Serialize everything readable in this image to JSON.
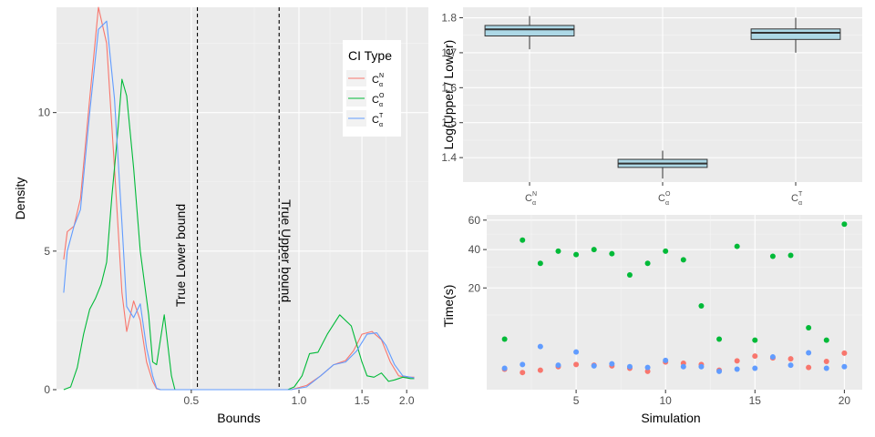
{
  "chart_data": [
    {
      "type": "line",
      "subtype": "density",
      "title": "",
      "xlabel": "Bounds",
      "ylabel": "Density",
      "x_scale": "log",
      "xlim": [
        0.21,
        2.3
      ],
      "ylim": [
        0,
        13.8
      ],
      "x_ticks": [
        0.5,
        1.0,
        1.5,
        2.0
      ],
      "x_tick_labels": [
        "0.5",
        "1.0",
        "1.5",
        "2.0"
      ],
      "y_ticks": [
        0,
        5,
        10
      ],
      "y_tick_labels": [
        "0",
        "5",
        "10"
      ],
      "grid": true,
      "legend": {
        "title": "CI Type",
        "position": "top-right",
        "entries": [
          {
            "base": "C",
            "sup": "N",
            "sub": "α",
            "color": "#F8766D"
          },
          {
            "base": "C",
            "sup": "O",
            "sub": "α",
            "color": "#00BA38"
          },
          {
            "base": "C",
            "sup": "T",
            "sub": "α",
            "color": "#619CFF"
          }
        ]
      },
      "annotations": [
        {
          "text": "True Lower bound",
          "x": 0.52,
          "style": "dashed"
        },
        {
          "text": "True Upper bound",
          "x": 0.88,
          "style": "dashed"
        }
      ],
      "series": [
        {
          "name": "C_alpha^N",
          "color": "#F8766D",
          "points": [
            [
              0.22,
              4.7
            ],
            [
              0.225,
              5.7
            ],
            [
              0.235,
              5.9
            ],
            [
              0.245,
              6.9
            ],
            [
              0.26,
              10.5
            ],
            [
              0.275,
              13.8
            ],
            [
              0.29,
              12.5
            ],
            [
              0.305,
              8.0
            ],
            [
              0.32,
              3.5
            ],
            [
              0.33,
              2.1
            ],
            [
              0.345,
              3.2
            ],
            [
              0.36,
              2.5
            ],
            [
              0.375,
              1.0
            ],
            [
              0.39,
              0.3
            ],
            [
              0.4,
              0.03
            ],
            [
              0.41,
              0
            ],
            [
              0.95,
              0
            ],
            [
              1.05,
              0.15
            ],
            [
              1.15,
              0.5
            ],
            [
              1.25,
              0.9
            ],
            [
              1.35,
              1.05
            ],
            [
              1.42,
              1.4
            ],
            [
              1.5,
              2.0
            ],
            [
              1.6,
              2.1
            ],
            [
              1.7,
              1.8
            ],
            [
              1.8,
              1.0
            ],
            [
              1.9,
              0.5
            ],
            [
              2.0,
              0.45
            ],
            [
              2.1,
              0.45
            ]
          ]
        },
        {
          "name": "C_alpha^O",
          "color": "#00BA38",
          "points": [
            [
              0.22,
              0
            ],
            [
              0.23,
              0.1
            ],
            [
              0.24,
              0.8
            ],
            [
              0.25,
              2.0
            ],
            [
              0.26,
              2.9
            ],
            [
              0.27,
              3.3
            ],
            [
              0.28,
              3.8
            ],
            [
              0.29,
              4.6
            ],
            [
              0.3,
              7.0
            ],
            [
              0.31,
              9.0
            ],
            [
              0.32,
              11.2
            ],
            [
              0.33,
              10.6
            ],
            [
              0.345,
              8.0
            ],
            [
              0.36,
              5.0
            ],
            [
              0.38,
              2.7
            ],
            [
              0.39,
              1.0
            ],
            [
              0.4,
              0.9
            ],
            [
              0.42,
              2.7
            ],
            [
              0.44,
              0.5
            ],
            [
              0.45,
              0
            ],
            [
              0.93,
              0
            ],
            [
              0.97,
              0.1
            ],
            [
              1.02,
              0.5
            ],
            [
              1.07,
              1.3
            ],
            [
              1.13,
              1.35
            ],
            [
              1.2,
              2.0
            ],
            [
              1.3,
              2.7
            ],
            [
              1.4,
              2.3
            ],
            [
              1.5,
              1.0
            ],
            [
              1.55,
              0.5
            ],
            [
              1.62,
              0.45
            ],
            [
              1.7,
              0.6
            ],
            [
              1.78,
              0.3
            ],
            [
              1.85,
              0.35
            ],
            [
              1.95,
              0.45
            ],
            [
              2.05,
              0.4
            ],
            [
              2.1,
              0.4
            ]
          ]
        },
        {
          "name": "C_alpha^T",
          "color": "#619CFF",
          "points": [
            [
              0.22,
              3.5
            ],
            [
              0.225,
              5.0
            ],
            [
              0.235,
              5.9
            ],
            [
              0.245,
              6.5
            ],
            [
              0.26,
              10.0
            ],
            [
              0.275,
              13.0
            ],
            [
              0.29,
              13.3
            ],
            [
              0.305,
              10.5
            ],
            [
              0.32,
              6.0
            ],
            [
              0.33,
              3.0
            ],
            [
              0.345,
              2.6
            ],
            [
              0.36,
              3.1
            ],
            [
              0.375,
              1.5
            ],
            [
              0.39,
              0.5
            ],
            [
              0.4,
              0.05
            ],
            [
              0.41,
              0
            ],
            [
              0.95,
              0
            ],
            [
              1.05,
              0.1
            ],
            [
              1.15,
              0.5
            ],
            [
              1.25,
              0.9
            ],
            [
              1.35,
              1.0
            ],
            [
              1.45,
              1.4
            ],
            [
              1.55,
              2.0
            ],
            [
              1.65,
              2.05
            ],
            [
              1.75,
              1.6
            ],
            [
              1.85,
              0.9
            ],
            [
              1.95,
              0.5
            ],
            [
              2.05,
              0.45
            ],
            [
              2.1,
              0.42
            ]
          ]
        }
      ]
    },
    {
      "type": "box",
      "title": "",
      "xlabel": "",
      "ylabel": "Log(Upper / Lower)",
      "ylim": [
        1.33,
        1.83
      ],
      "y_ticks": [
        1.4,
        1.5,
        1.6,
        1.7,
        1.8
      ],
      "y_tick_labels": [
        "1.4",
        "1.5",
        "1.6",
        "1.7",
        "1.8"
      ],
      "grid": true,
      "fill_color": "#ADD8E6",
      "categories": [
        {
          "base": "C",
          "sup": "N",
          "sub": "α"
        },
        {
          "base": "C",
          "sup": "O",
          "sub": "α"
        },
        {
          "base": "C",
          "sup": "T",
          "sub": "α"
        }
      ],
      "boxes": [
        {
          "min": 1.71,
          "q1": 1.748,
          "median": 1.767,
          "q3": 1.778,
          "max": 1.805
        },
        {
          "min": 1.34,
          "q1": 1.372,
          "median": 1.383,
          "q3": 1.395,
          "max": 1.42
        },
        {
          "min": 1.7,
          "q1": 1.738,
          "median": 1.757,
          "q3": 1.768,
          "max": 1.8
        }
      ]
    },
    {
      "type": "scatter",
      "title": "",
      "xlabel": "Simulation",
      "ylabel": "Time(s)",
      "y_scale": "sqrt",
      "xlim": [
        0,
        21
      ],
      "ylim": [
        0,
        64
      ],
      "x_ticks": [
        5,
        10,
        15,
        20
      ],
      "x_tick_labels": [
        "5",
        "10",
        "15",
        "20"
      ],
      "y_ticks": [
        20,
        40,
        60
      ],
      "y_tick_labels": [
        "20",
        "40",
        "60"
      ],
      "grid": true,
      "series": [
        {
          "name": "C_alpha^N",
          "color": "#F8766D",
          "x": [
            1,
            2,
            3,
            4,
            5,
            6,
            7,
            8,
            9,
            10,
            11,
            12,
            13,
            14,
            15,
            16,
            17,
            18,
            19,
            20
          ],
          "y": [
            0.3,
            0.15,
            0.25,
            0.45,
            0.6,
            0.55,
            0.5,
            0.35,
            0.2,
            0.8,
            0.7,
            0.6,
            0.25,
            0.9,
            1.4,
            1.2,
            1.1,
            0.4,
            0.85,
            1.75
          ]
        },
        {
          "name": "C_alpha^O",
          "color": "#00BA38",
          "x": [
            1,
            2,
            3,
            4,
            5,
            6,
            7,
            8,
            9,
            10,
            11,
            12,
            13,
            14,
            15,
            16,
            17,
            18,
            19,
            20
          ],
          "y": [
            4.0,
            46,
            32,
            39,
            37,
            40,
            37.5,
            26,
            32,
            39,
            34,
            13,
            4.0,
            42,
            3.8,
            36,
            36.5,
            6.5,
            3.8,
            57
          ]
        },
        {
          "name": "C_alpha^T",
          "color": "#619CFF",
          "x": [
            1,
            2,
            3,
            4,
            5,
            6,
            7,
            8,
            9,
            10,
            11,
            12,
            13,
            14,
            15,
            16,
            17,
            18,
            19,
            20
          ],
          "y": [
            0.35,
            0.6,
            2.7,
            0.55,
            1.9,
            0.5,
            0.65,
            0.45,
            0.4,
            0.95,
            0.45,
            0.45,
            0.2,
            0.3,
            0.35,
            1.3,
            0.55,
            1.8,
            0.35,
            0.45
          ]
        }
      ]
    }
  ]
}
